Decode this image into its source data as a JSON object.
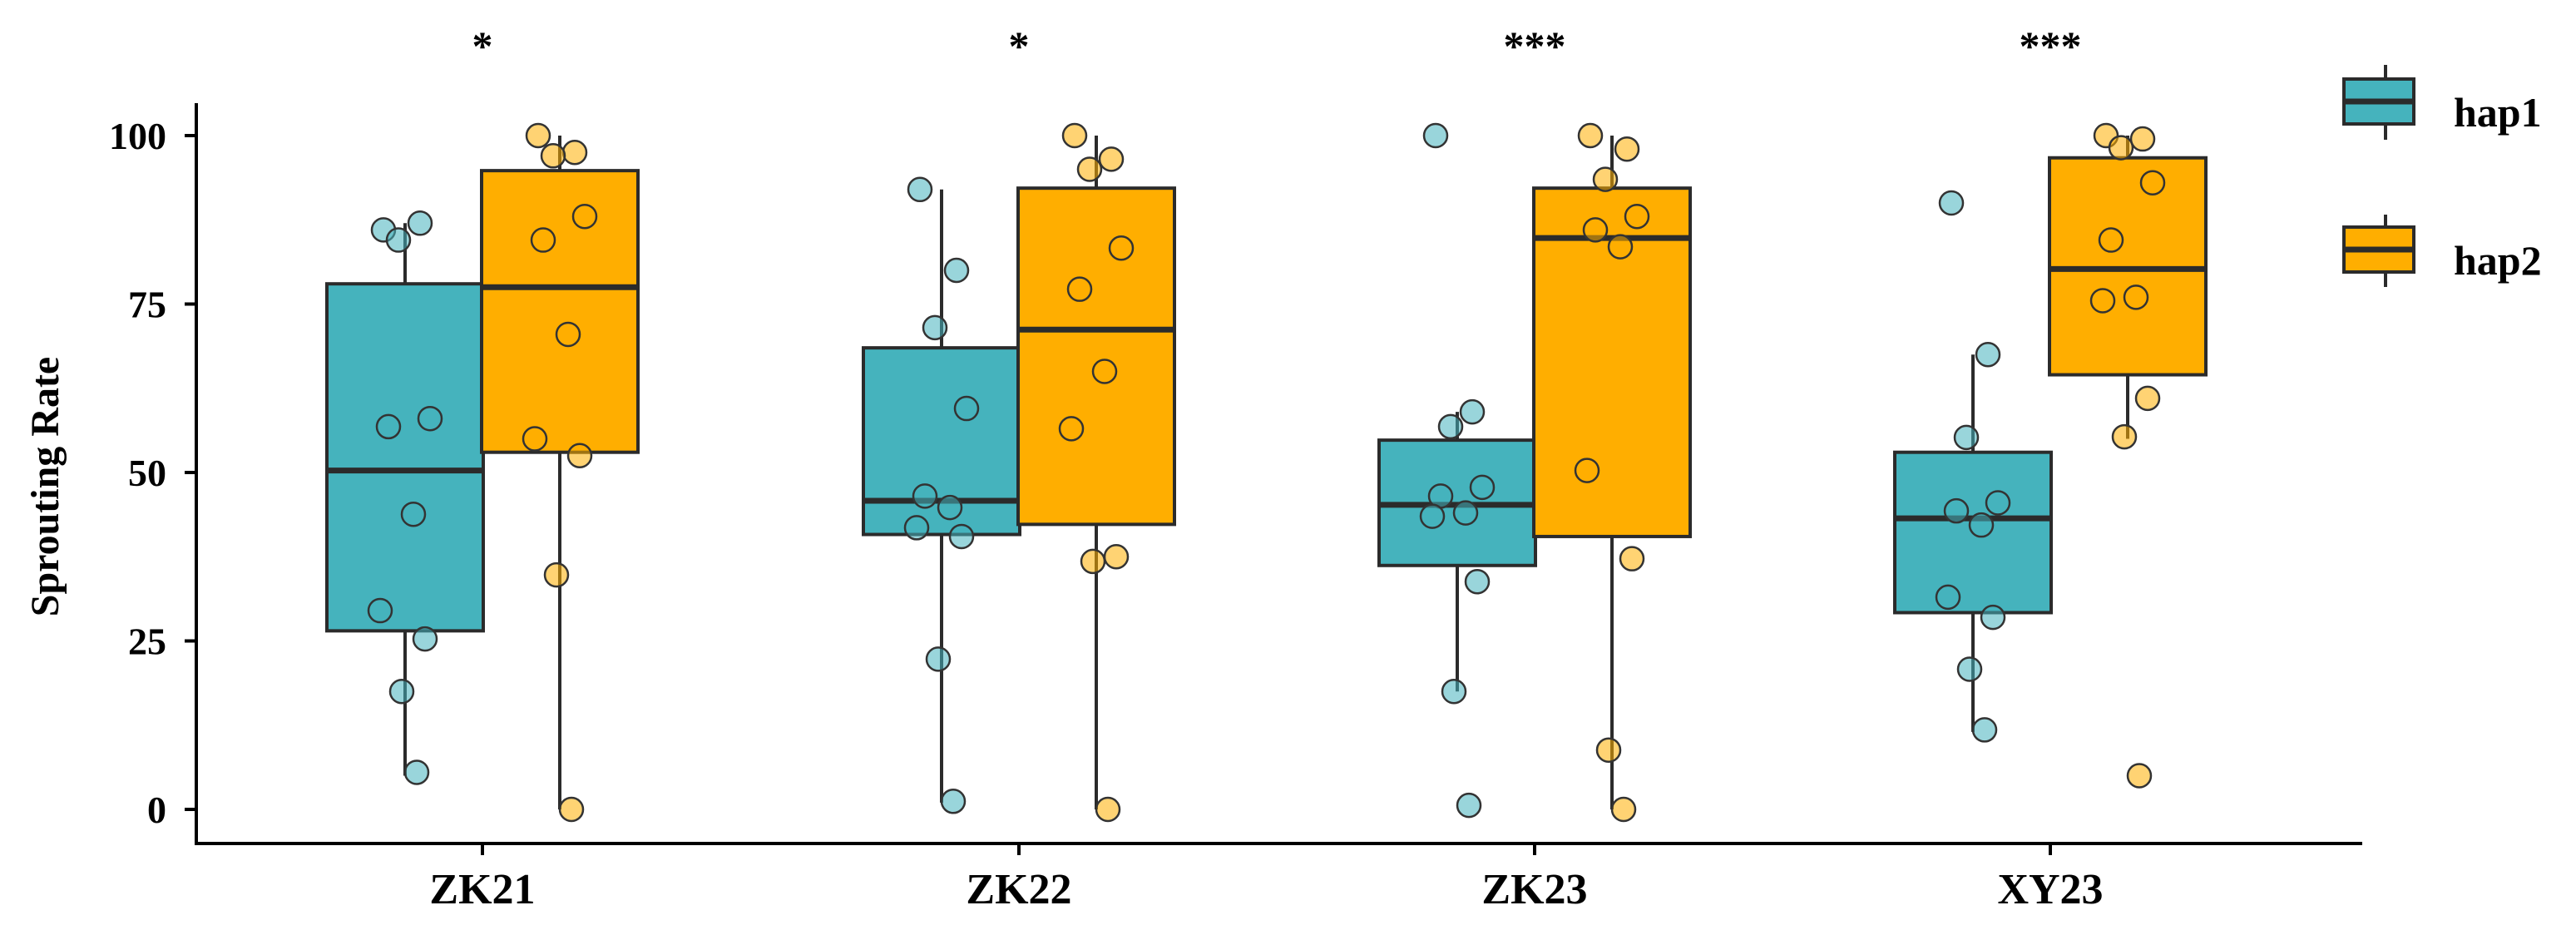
{
  "chart_data": {
    "type": "box",
    "xlabel": "",
    "ylabel": "Sprouting Rate",
    "ylim": [
      -5,
      105
    ],
    "yticks": [
      0,
      25,
      50,
      75,
      100
    ],
    "categories": [
      "ZK21",
      "ZK22",
      "ZK23",
      "XY23"
    ],
    "significance": [
      "*",
      "*",
      "***",
      "***"
    ],
    "legend_position": "right",
    "series": [
      {
        "name": "hap1",
        "color": "#45B3BD",
        "boxes": [
          {
            "min": 5,
            "q1": 26.5,
            "median": 50.3,
            "q3": 78,
            "max": 87,
            "points": [
              86,
              87,
              84.5,
              58,
              56.8,
              43.8,
              29.5,
              25.3,
              17.5,
              5.5
            ]
          },
          {
            "min": 1,
            "q1": 40.8,
            "median": 45.8,
            "q3": 68.5,
            "max": 92,
            "points": [
              92,
              80,
              71.5,
              59.5,
              46.5,
              44.8,
              41.8,
              40.5,
              22.3,
              1.2
            ]
          },
          {
            "min": 17.5,
            "q1": 36.2,
            "median": 45.2,
            "q3": 54.8,
            "max": 59,
            "points": [
              100,
              59,
              56.8,
              47.8,
              46.5,
              44,
              43.5,
              33.8,
              17.5,
              0.6
            ]
          },
          {
            "min": 11.5,
            "q1": 29.2,
            "median": 43.2,
            "q3": 53,
            "max": 67.5,
            "points": [
              90,
              67.5,
              55.2,
              45.5,
              44.3,
              42.2,
              31.5,
              28.5,
              20.8,
              11.8
            ]
          }
        ]
      },
      {
        "name": "hap2",
        "color": "#FFAE00",
        "boxes": [
          {
            "min": 0,
            "q1": 53,
            "median": 77.5,
            "q3": 94.8,
            "max": 100,
            "points": [
              100,
              97.5,
              97,
              88,
              84.5,
              70.5,
              55,
              52.5,
              34.8,
              0
            ]
          },
          {
            "min": 0,
            "q1": 42.3,
            "median": 71.2,
            "q3": 92.2,
            "max": 100,
            "points": [
              100,
              96.5,
              95,
              83.3,
              77.2,
              65,
              56.5,
              37.5,
              36.8,
              0
            ]
          },
          {
            "min": 0,
            "q1": 40.5,
            "median": 84.8,
            "q3": 92.2,
            "max": 100,
            "points": [
              100,
              98,
              93.5,
              88,
              86,
              83.5,
              50.3,
              37.2,
              8.8,
              0
            ]
          },
          {
            "min": 55,
            "q1": 64.5,
            "median": 80.2,
            "q3": 96.7,
            "max": 100,
            "points": [
              100,
              99.5,
              98.2,
              93,
              84.5,
              76,
              75.5,
              61,
              55.3,
              5
            ]
          }
        ]
      }
    ]
  }
}
